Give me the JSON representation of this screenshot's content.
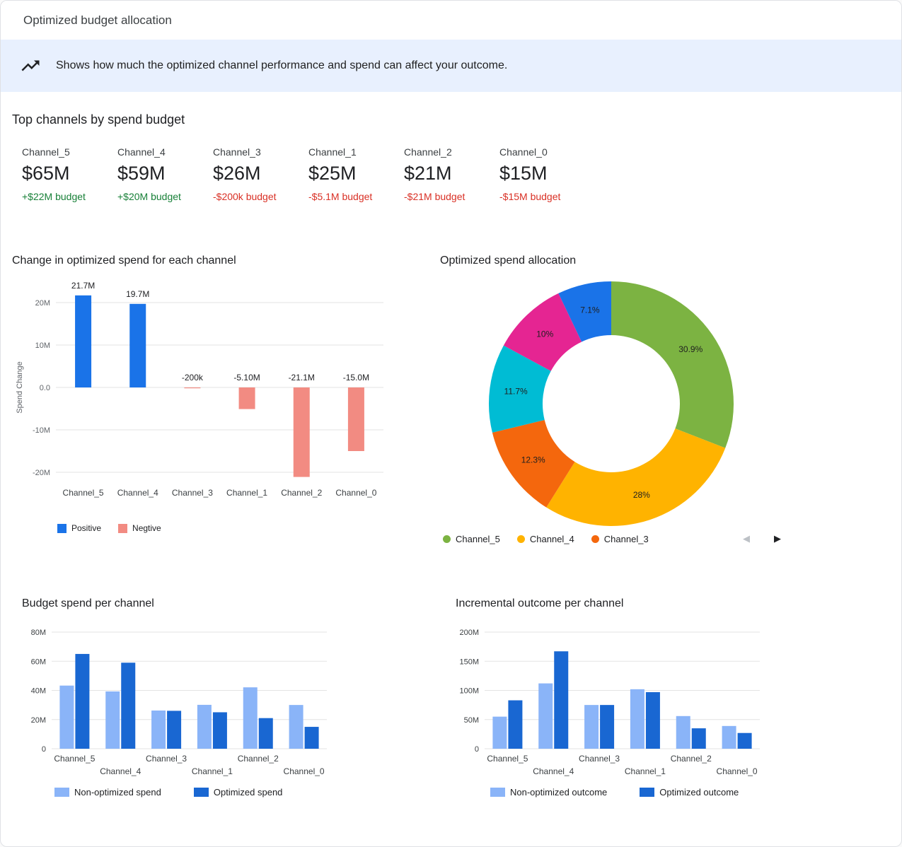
{
  "header": {
    "title": "Optimized budget allocation"
  },
  "banner": {
    "text": "Shows how much the optimized channel performance and spend can affect your outcome."
  },
  "top_channels": {
    "title": "Top channels by spend budget",
    "cards": [
      {
        "name": "Channel_5",
        "value": "$65M",
        "delta": "+$22M budget",
        "delta_color": "#188038"
      },
      {
        "name": "Channel_4",
        "value": "$59M",
        "delta": "+$20M budget",
        "delta_color": "#188038"
      },
      {
        "name": "Channel_3",
        "value": "$26M",
        "delta": "-$200k budget",
        "delta_color": "#d93025"
      },
      {
        "name": "Channel_1",
        "value": "$25M",
        "delta": "-$5.1M budget",
        "delta_color": "#d93025"
      },
      {
        "name": "Channel_2",
        "value": "$21M",
        "delta": "-$21M budget",
        "delta_color": "#d93025"
      },
      {
        "name": "Channel_0",
        "value": "$15M",
        "delta": "-$15M budget",
        "delta_color": "#d93025"
      }
    ]
  },
  "chart_data": [
    {
      "id": "spend-change",
      "type": "bar",
      "title": "Change in optimized spend for each channel",
      "ylabel": "Spend Change",
      "categories": [
        "Channel_5",
        "Channel_4",
        "Channel_3",
        "Channel_1",
        "Channel_2",
        "Channel_0"
      ],
      "values": [
        21.7,
        19.7,
        -0.2,
        -5.1,
        -21.1,
        -15.0
      ],
      "value_labels": [
        "21.7M",
        "19.7M",
        "-200k",
        "-5.10M",
        "-21.1M",
        "-15.0M"
      ],
      "unit": "M",
      "ylim": [
        -25,
        25
      ],
      "yticks": {
        "values": [
          20,
          10,
          0,
          -10,
          -20
        ],
        "labels": [
          "20M",
          "10M",
          "0.0",
          "-10M",
          "-20M"
        ]
      },
      "colors": {
        "positive": "#1a73e8",
        "negative": "#f28b82"
      },
      "legend": [
        {
          "label": "Positive",
          "color": "#1a73e8"
        },
        {
          "label": "Negtive",
          "color": "#f28b82"
        }
      ]
    },
    {
      "id": "spend-allocation",
      "type": "pie",
      "title": "Optimized spend allocation",
      "slices": [
        {
          "pct": 30.9,
          "label": "30.9%",
          "color": "#7cb342"
        },
        {
          "pct": 28,
          "label": "28%",
          "color": "#ffb300"
        },
        {
          "pct": 12.3,
          "label": "12.3%",
          "color": "#f4670d"
        },
        {
          "pct": 11.7,
          "label": "11.7%",
          "color": "#00bcd4"
        },
        {
          "pct": 10,
          "label": "10%",
          "color": "#e52592"
        },
        {
          "pct": 7.1,
          "label": "7.1%",
          "color": "#1a73e8"
        }
      ],
      "legend": [
        {
          "label": "Channel_5",
          "color": "#7cb342"
        },
        {
          "label": "Channel_4",
          "color": "#ffb300"
        },
        {
          "label": "Channel_3",
          "color": "#f4670d"
        }
      ],
      "pagination": {
        "prev": "◀",
        "next": "▶"
      }
    },
    {
      "id": "budget-spend",
      "type": "bar",
      "title": "Budget spend per channel",
      "categories": [
        "Channel_5",
        "Channel_4",
        "Channel_3",
        "Channel_1",
        "Channel_2",
        "Channel_0"
      ],
      "series": [
        {
          "name": "Non-optimized spend",
          "color": "#8ab4f8",
          "values": [
            43.3,
            39.3,
            26.2,
            30.1,
            42.1,
            30.0
          ]
        },
        {
          "name": "Optimized spend",
          "color": "#1967d2",
          "values": [
            65,
            59,
            26,
            25,
            21,
            15
          ]
        }
      ],
      "unit": "M",
      "ylim": [
        0,
        80
      ],
      "yticks": {
        "values": [
          0,
          20,
          40,
          60,
          80
        ],
        "labels": [
          "0",
          "20M",
          "40M",
          "60M",
          "80M"
        ]
      }
    },
    {
      "id": "incremental-outcome",
      "type": "bar",
      "title": "Incremental outcome per channel",
      "categories": [
        "Channel_5",
        "Channel_4",
        "Channel_3",
        "Channel_1",
        "Channel_2",
        "Channel_0"
      ],
      "series": [
        {
          "name": "Non-optimized outcome",
          "color": "#8ab4f8",
          "values": [
            55,
            112,
            75,
            102,
            56,
            39
          ]
        },
        {
          "name": "Optimized outcome",
          "color": "#1967d2",
          "values": [
            83,
            167,
            75,
            97,
            35,
            27
          ]
        }
      ],
      "unit": "M",
      "ylim": [
        0,
        200
      ],
      "yticks": {
        "values": [
          0,
          50,
          100,
          150,
          200
        ],
        "labels": [
          "0",
          "50M",
          "100M",
          "150M",
          "200M"
        ]
      }
    }
  ]
}
